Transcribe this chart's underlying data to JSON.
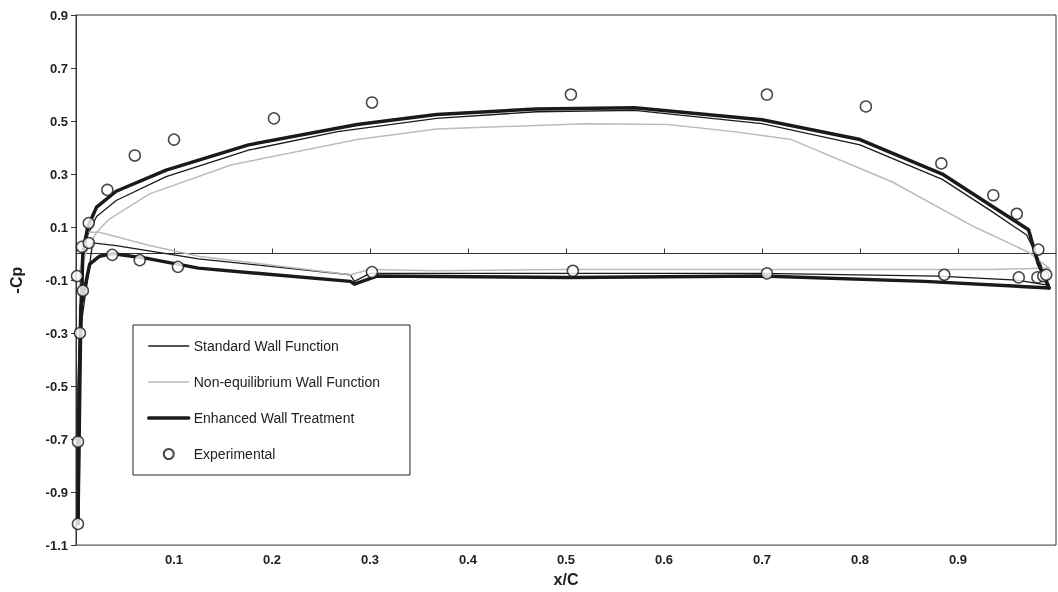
{
  "chart_data": {
    "type": "line",
    "xlabel": "x/C",
    "ylabel": "-Cp",
    "xlim": [
      0,
      1
    ],
    "xticks": [
      0.1,
      0.2,
      0.3,
      0.4,
      0.5,
      0.6,
      0.7,
      0.8,
      0.9
    ],
    "ylim": [
      -1.1,
      0.9
    ],
    "yticks": [
      -1.1,
      -0.9,
      -0.7,
      -0.5,
      -0.3,
      -0.1,
      0.1,
      0.3,
      0.5,
      0.7,
      0.9
    ],
    "grid": false,
    "legend": "bottom left",
    "series": [
      {
        "name": "Standard Wall Function",
        "color": "#1a1a1a",
        "marker": "none",
        "line_style": "solid",
        "x": [
          0.002,
          0.003,
          0.008,
          0.012,
          0.021,
          0.041,
          0.092,
          0.176,
          0.267,
          0.368,
          0.47,
          0.57,
          0.7,
          0.8,
          0.884,
          0.934,
          0.97,
          0.982,
          0.993
        ],
        "values": [
          -1.0,
          -0.5,
          0.01,
          0.07,
          0.14,
          0.2,
          0.29,
          0.39,
          0.46,
          0.51,
          0.535,
          0.54,
          0.49,
          0.41,
          0.28,
          0.16,
          0.07,
          -0.02,
          -0.12
        ]
      },
      {
        "color": "#1a1a1a",
        "marker": "none",
        "line_style": "solid",
        "x": [
          0.002,
          0.004,
          0.017,
          0.041,
          0.125,
          0.28,
          0.284,
          0.3,
          0.5,
          0.7,
          0.88,
          0.96,
          0.993
        ],
        "values": [
          -1.0,
          -0.3,
          0.04,
          0.03,
          -0.02,
          -0.08,
          -0.105,
          -0.075,
          -0.075,
          -0.075,
          -0.085,
          -0.1,
          -0.12
        ]
      },
      {
        "name": "Non-equilibrium Wall Function",
        "color": "#bbbbbb",
        "marker": "none",
        "line_style": "solid",
        "x": [
          0.002,
          0.004,
          0.012,
          0.021,
          0.034,
          0.075,
          0.159,
          0.287,
          0.368,
          0.52,
          0.604,
          0.671,
          0.73,
          0.833,
          0.917,
          0.972,
          0.993
        ],
        "values": [
          -0.95,
          -0.06,
          0.02,
          0.08,
          0.13,
          0.225,
          0.335,
          0.43,
          0.47,
          0.49,
          0.487,
          0.46,
          0.43,
          0.27,
          0.1,
          0.005,
          -0.055
        ]
      },
      {
        "color": "#bbbbbb",
        "marker": "none",
        "line_style": "solid",
        "x": [
          0.002,
          0.003,
          0.006,
          0.012,
          0.024,
          0.075,
          0.125,
          0.28,
          0.3,
          0.368,
          0.5,
          0.7,
          0.934,
          0.993
        ],
        "values": [
          -0.95,
          -0.3,
          0.0,
          0.08,
          0.08,
          0.03,
          -0.01,
          -0.08,
          -0.06,
          -0.065,
          -0.06,
          -0.06,
          -0.06,
          -0.055
        ]
      },
      {
        "name": "Enhanced Wall Treatment",
        "color": "#1a1a1a",
        "marker": "none",
        "line_style": "solid",
        "x": [
          0.002,
          0.003,
          0.007,
          0.012,
          0.021,
          0.041,
          0.092,
          0.176,
          0.287,
          0.368,
          0.47,
          0.57,
          0.7,
          0.8,
          0.884,
          0.934,
          0.972,
          0.982,
          0.993
        ],
        "values": [
          -1.02,
          -0.5,
          0.005,
          0.1,
          0.175,
          0.235,
          0.315,
          0.41,
          0.487,
          0.525,
          0.545,
          0.55,
          0.505,
          0.43,
          0.3,
          0.18,
          0.09,
          -0.04,
          -0.13
        ]
      },
      {
        "color": "#1a1a1a",
        "marker": "none",
        "line_style": "solid",
        "x": [
          0.002,
          0.005,
          0.014,
          0.024,
          0.037,
          0.075,
          0.125,
          0.28,
          0.284,
          0.307,
          0.503,
          0.7,
          0.866,
          0.993
        ],
        "values": [
          -1.02,
          -0.2,
          -0.04,
          -0.01,
          0.0,
          -0.02,
          -0.055,
          -0.105,
          -0.115,
          -0.085,
          -0.09,
          -0.085,
          -0.105,
          -0.13
        ]
      },
      {
        "name": "Experimental",
        "type": "scatter",
        "color": "#1a1a1a",
        "marker": "circle",
        "x": [
          0.002,
          0.002,
          0.004,
          0.007,
          0.001,
          0.006,
          0.013,
          0.013,
          0.032,
          0.06,
          0.1,
          0.202,
          0.302,
          0.505,
          0.705,
          0.806,
          0.883,
          0.936,
          0.96,
          0.982,
          0.037,
          0.065,
          0.104,
          0.302,
          0.507,
          0.705,
          0.886,
          0.962,
          0.981,
          0.987,
          0.99
        ],
        "values": [
          -1.02,
          -0.71,
          -0.3,
          -0.14,
          -0.085,
          0.025,
          0.04,
          0.115,
          0.24,
          0.37,
          0.43,
          0.51,
          0.57,
          0.6,
          0.6,
          0.555,
          0.34,
          0.22,
          0.15,
          0.015,
          -0.005,
          -0.025,
          -0.05,
          -0.07,
          -0.065,
          -0.075,
          -0.08,
          -0.09,
          -0.09,
          -0.085,
          -0.08
        ]
      }
    ]
  }
}
